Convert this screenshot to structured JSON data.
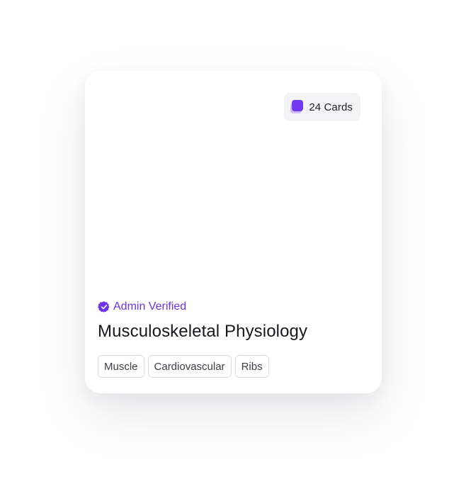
{
  "deck": {
    "card_count_label": "24 Cards",
    "verification_label": "Admin Verified",
    "title": "Musculoskeletal Physiology",
    "tags": [
      "Muscle",
      "Cardiovascular",
      "Ribs"
    ]
  },
  "icons": {
    "count": "stacked-cards-icon",
    "verified": "verified-badge-icon"
  },
  "colors": {
    "accent": "#6c33e8",
    "card_icon": "#7239f0",
    "badge_bg": "#f4f4f6"
  }
}
